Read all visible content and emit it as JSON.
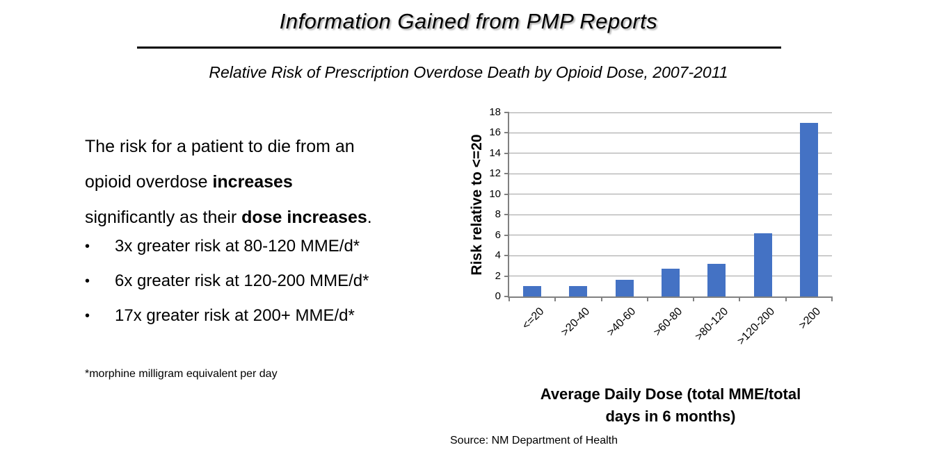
{
  "slide": {
    "title": "Information Gained from PMP Reports",
    "subtitle": "Relative Risk of Prescription Overdose Death by Opioid Dose, 2007-2011"
  },
  "left_panel": {
    "paragraph_lines": [
      {
        "normal": "The risk for a patient to die from an"
      },
      {
        "normal": "opioid overdose ",
        "bold": "increases"
      },
      {
        "normal": "significantly as their ",
        "bold": "dose increases",
        "tail": "."
      }
    ],
    "bullets": [
      "3x greater risk at 80-120 MME/d*",
      "6x greater risk at 120-200 MME/d*",
      "17x greater risk at 200+ MME/d*"
    ],
    "bullet_marker": "•",
    "footnote": "*morphine milligram equivalent per day"
  },
  "chart_data": {
    "type": "bar",
    "title": "",
    "categories": [
      "<=20",
      ">20-40",
      ">40-60",
      ">60-80",
      ">80-120",
      ">120-200",
      ">200"
    ],
    "values": [
      1.0,
      1.0,
      1.6,
      2.7,
      3.2,
      6.2,
      17.0
    ],
    "ylabel": "Risk relative to <=20",
    "xlabel_line1": "Average Daily Dose (total MME/total",
    "xlabel_line2": "days in 6 months)",
    "ylim": [
      0,
      18
    ],
    "ytick_step": 2,
    "grid": true,
    "legend_position": "none",
    "bar_color": "#4472C4",
    "gridline_color": "#a0a0a0",
    "axis_color": "#808080"
  },
  "source": "Source: NM Department of Health"
}
